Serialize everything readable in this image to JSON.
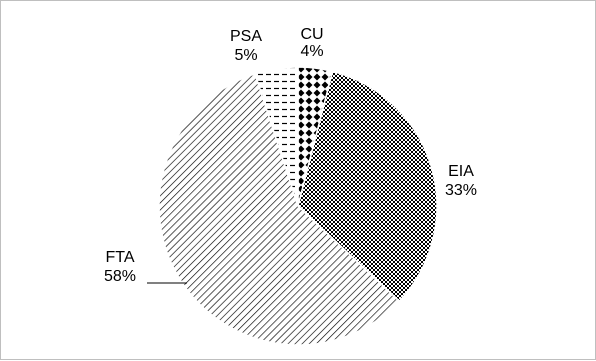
{
  "chart_data": {
    "type": "pie",
    "title": "",
    "start_angle_deg": 90,
    "direction": "clockwise",
    "legend": "none",
    "slices": [
      {
        "name": "CU",
        "value": 4,
        "label": "4%",
        "pattern": "diamonds"
      },
      {
        "name": "EIA",
        "value": 33,
        "label": "33%",
        "pattern": "checker"
      },
      {
        "name": "FTA",
        "value": 58,
        "label": "58%",
        "pattern": "diagonal-hatch"
      },
      {
        "name": "PSA",
        "value": 5,
        "label": "5%",
        "pattern": "dashes"
      }
    ]
  }
}
